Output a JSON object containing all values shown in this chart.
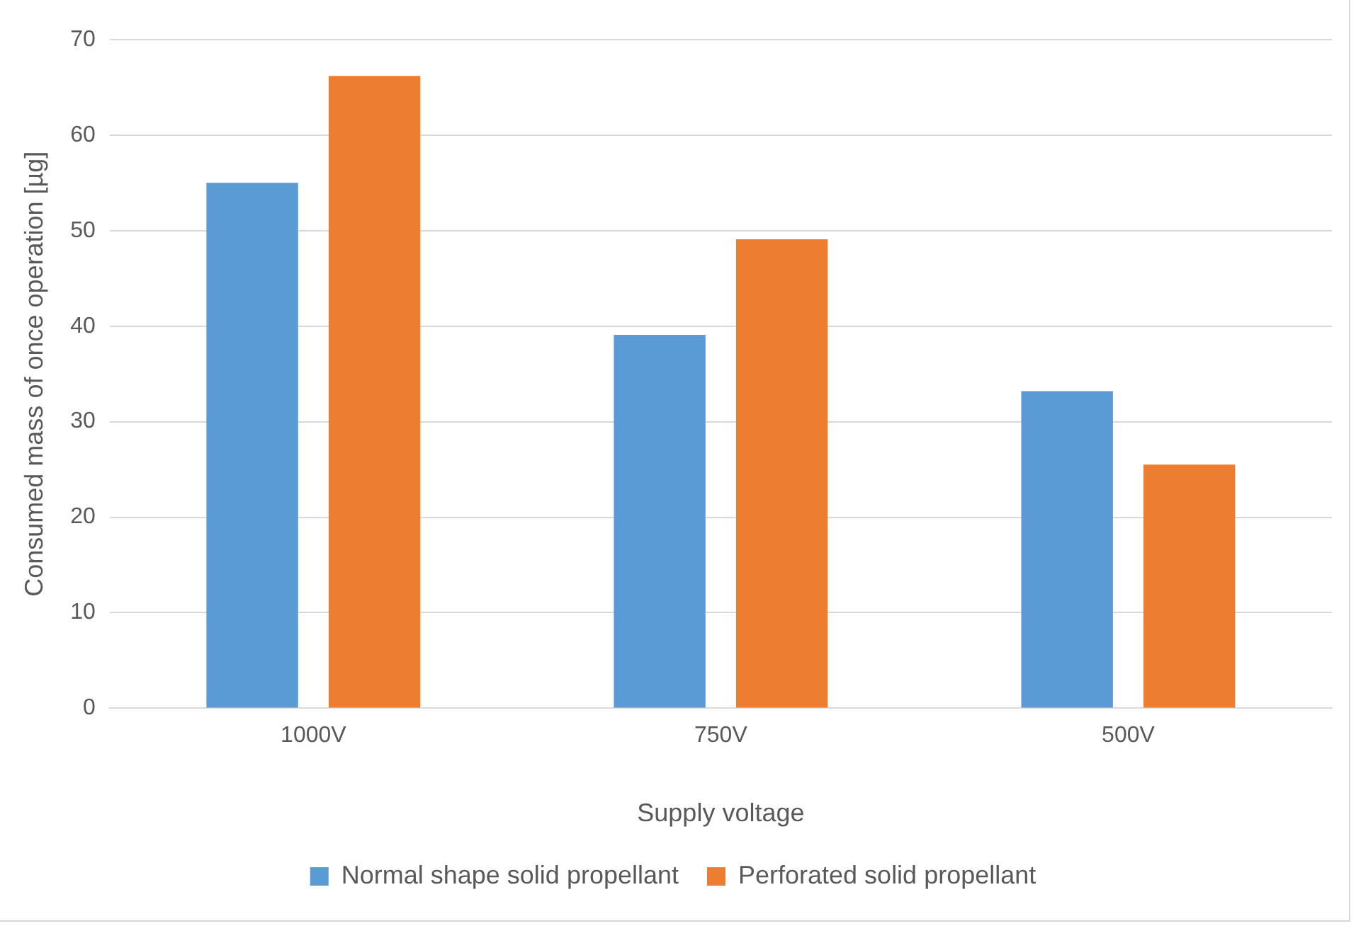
{
  "chart_data": {
    "type": "bar",
    "xlabel": "Supply voltage",
    "ylabel": "Consumed mass of once operation [µg]",
    "categories": [
      "1000V",
      "750V",
      "500V"
    ],
    "series": [
      {
        "name": "Normal shape solid propellant",
        "color": "#5b9bd5",
        "values": [
          55,
          39.1,
          33.2
        ]
      },
      {
        "name": "Perforated solid propellant",
        "color": "#ed7d31",
        "values": [
          66.2,
          49.1,
          25.5
        ]
      }
    ],
    "ylim": [
      0,
      70
    ],
    "yticks": [
      0,
      10,
      20,
      30,
      40,
      50,
      60,
      70
    ],
    "grid": "y",
    "legend": "bottom"
  }
}
